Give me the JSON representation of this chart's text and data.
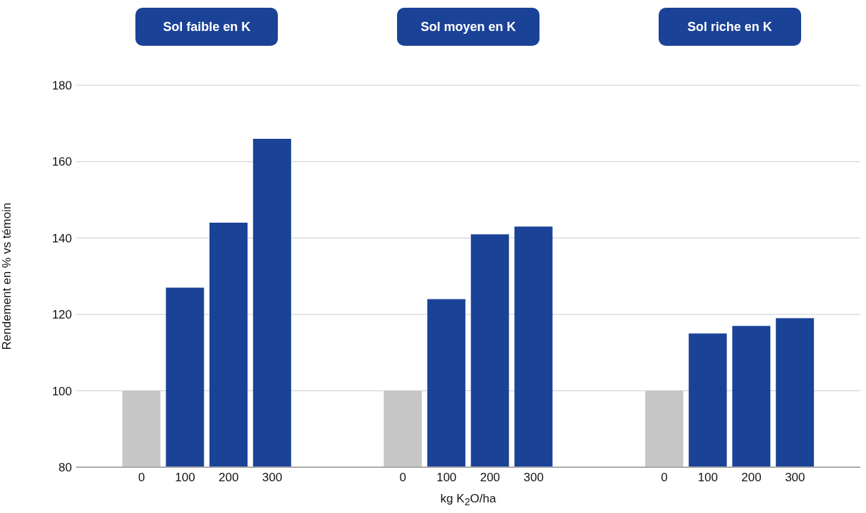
{
  "chart_data": {
    "type": "bar",
    "annotations": [
      "Sol faible en K",
      "Sol moyen en K",
      "Sol riche en K"
    ],
    "xlabel": "kg K$_{2}$O/ha",
    "ylabel": "Rendement en % vs témoin",
    "categories": [
      null,
      "0",
      "100",
      "200",
      "300",
      null,
      null,
      "0",
      "100",
      "200",
      "300",
      null,
      null,
      "0",
      "100",
      "200",
      "300",
      null
    ],
    "values": [
      null,
      100,
      127,
      144,
      166,
      null,
      null,
      100,
      124,
      141,
      143,
      null,
      null,
      100,
      115,
      117,
      119,
      null
    ],
    "colors": [
      "#c6c6c6",
      "#c6c6c6",
      "#1a4296",
      "#1a4296",
      "#1a4296",
      "#c6c6c6",
      "#c6c6c6",
      "#c6c6c6",
      "#1a4296",
      "#1a4296",
      "#1a4296",
      "#c6c6c6",
      "#c6c6c6",
      "#c6c6c6",
      "#1a4296",
      "#1a4296",
      "#1a4296",
      "#c6c6c6"
    ],
    "ylim": [
      80,
      180
    ],
    "yticks": [
      80,
      100,
      120,
      140,
      160,
      180
    ],
    "grid": "y"
  }
}
